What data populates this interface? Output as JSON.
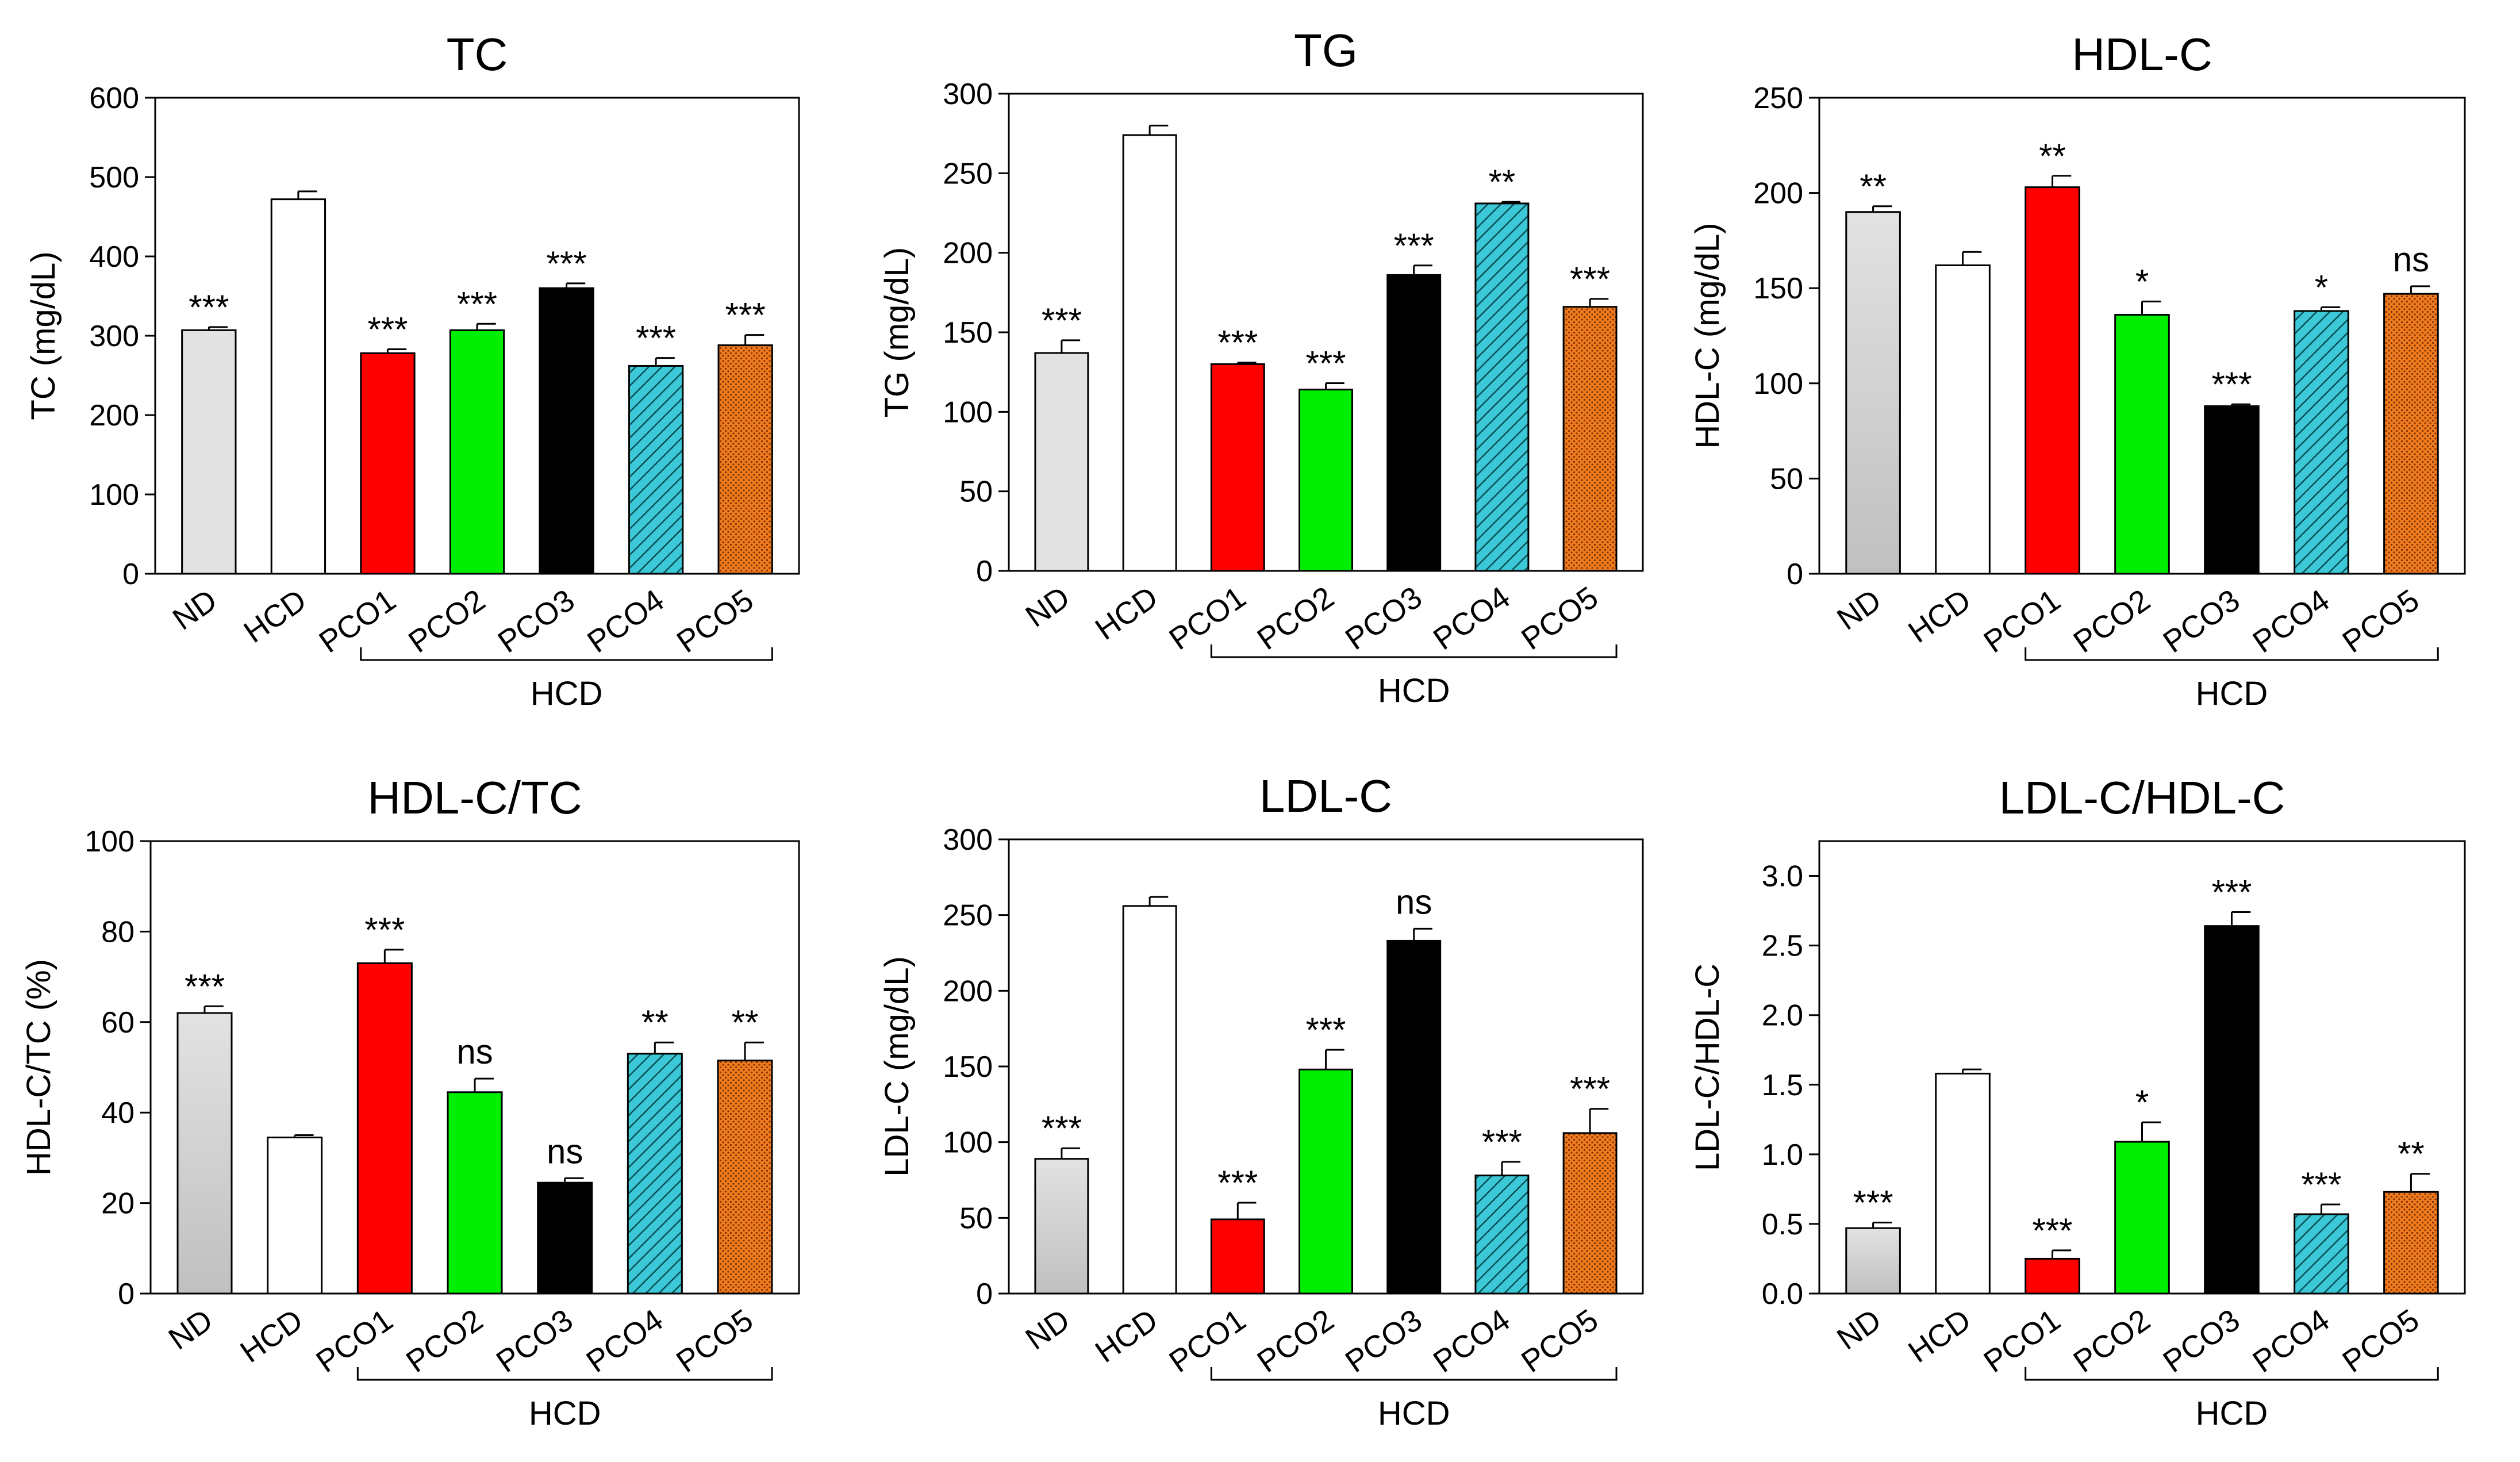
{
  "chart_data": [
    {
      "type": "bar",
      "title": "TC",
      "ylabel": "TC (mg/dL)",
      "xlabel": "",
      "ylim": [
        0,
        600
      ],
      "yticks": [
        "0",
        "100",
        "200",
        "300",
        "400",
        "500",
        "600"
      ],
      "categories": [
        "ND",
        "HCD",
        "PCO1",
        "PCO2",
        "PCO3",
        "PCO4",
        "PCO5"
      ],
      "values": [
        307,
        472,
        278,
        307,
        360,
        262,
        288
      ],
      "errors": [
        4,
        10,
        5,
        8,
        6,
        10,
        13
      ],
      "significance": [
        "***",
        "",
        "***",
        "***",
        "***",
        "***",
        "***"
      ],
      "group_label": "HCD"
    },
    {
      "type": "bar",
      "title": "TG",
      "ylabel": "TG (mg/dL)",
      "xlabel": "",
      "ylim": [
        0,
        300
      ],
      "yticks": [
        "0",
        "50",
        "100",
        "150",
        "200",
        "250",
        "300"
      ],
      "categories": [
        "ND",
        "HCD",
        "PCO1",
        "PCO2",
        "PCO3",
        "PCO4",
        "PCO5"
      ],
      "values": [
        137,
        274,
        130,
        114,
        186,
        231,
        166
      ],
      "errors": [
        8,
        6,
        1,
        4,
        6,
        1,
        5
      ],
      "significance": [
        "***",
        "",
        "***",
        "***",
        "***",
        "**",
        "***"
      ],
      "group_label": "HCD"
    },
    {
      "type": "bar",
      "title": "HDL-C",
      "ylabel": "HDL-C (mg/dL)",
      "xlabel": "",
      "ylim": [
        0,
        250
      ],
      "yticks": [
        "0",
        "50",
        "100",
        "150",
        "200",
        "250"
      ],
      "categories": [
        "ND",
        "HCD",
        "PCO1",
        "PCO2",
        "PCO3",
        "PCO4",
        "PCO5"
      ],
      "values": [
        190,
        162,
        203,
        136,
        88,
        138,
        147
      ],
      "errors": [
        3,
        7,
        6,
        7,
        1,
        2,
        4
      ],
      "significance": [
        "**",
        "",
        "**",
        "*",
        "***",
        "*",
        "ns"
      ],
      "group_label": "HCD"
    },
    {
      "type": "bar",
      "title": "HDL-C/TC",
      "ylabel": "HDL-C/TC (%)",
      "xlabel": "",
      "ylim": [
        0,
        100
      ],
      "yticks": [
        "0",
        "20",
        "40",
        "60",
        "80",
        "100"
      ],
      "categories": [
        "ND",
        "HCD",
        "PCO1",
        "PCO2",
        "PCO3",
        "PCO4",
        "PCO5"
      ],
      "values": [
        62,
        34.5,
        73,
        44.5,
        24.5,
        53,
        51.5
      ],
      "errors": [
        1.5,
        0.5,
        3,
        3,
        1,
        2.5,
        4
      ],
      "significance": [
        "***",
        "",
        "***",
        "ns",
        "ns",
        "**",
        "**"
      ],
      "group_label": "HCD"
    },
    {
      "type": "bar",
      "title": "LDL-C",
      "ylabel": "LDL-C (mg/dL)",
      "xlabel": "",
      "ylim": [
        0,
        300
      ],
      "yticks": [
        "0",
        "50",
        "100",
        "150",
        "200",
        "250",
        "300"
      ],
      "categories": [
        "ND",
        "HCD",
        "PCO1",
        "PCO2",
        "PCO3",
        "PCO4",
        "PCO5"
      ],
      "values": [
        89,
        256,
        49,
        148,
        233,
        78,
        106
      ],
      "errors": [
        7,
        6,
        11,
        13,
        8,
        9,
        16
      ],
      "significance": [
        "***",
        "",
        "***",
        "***",
        "ns",
        "***",
        "***"
      ],
      "group_label": "HCD"
    },
    {
      "type": "bar",
      "title": "LDL-C/HDL-C",
      "ylabel": "LDL-C/HDL-C",
      "xlabel": "",
      "ylim": [
        0,
        3.25
      ],
      "yticks": [
        "0.0",
        "0.5",
        "1.0",
        "1.5",
        "2.0",
        "2.5",
        "3.0"
      ],
      "categories": [
        "ND",
        "HCD",
        "PCO1",
        "PCO2",
        "PCO3",
        "PCO4",
        "PCO5"
      ],
      "values": [
        0.47,
        1.58,
        0.25,
        1.09,
        2.64,
        0.57,
        0.73
      ],
      "errors": [
        0.04,
        0.03,
        0.06,
        0.14,
        0.1,
        0.07,
        0.13
      ],
      "significance": [
        "***",
        "",
        "***",
        "*",
        "***",
        "***",
        "**"
      ],
      "group_label": "HCD"
    }
  ],
  "colors": {
    "ND_top": "#e2e2e2",
    "ND_bottom": "#c0c0c0",
    "HCD": "#ffffff",
    "PCO1": "#ff0000",
    "PCO2": "#00ee00",
    "PCO3": "#000000",
    "PCO4": "#3cc8d6",
    "PCO5": "#f07a1e"
  }
}
